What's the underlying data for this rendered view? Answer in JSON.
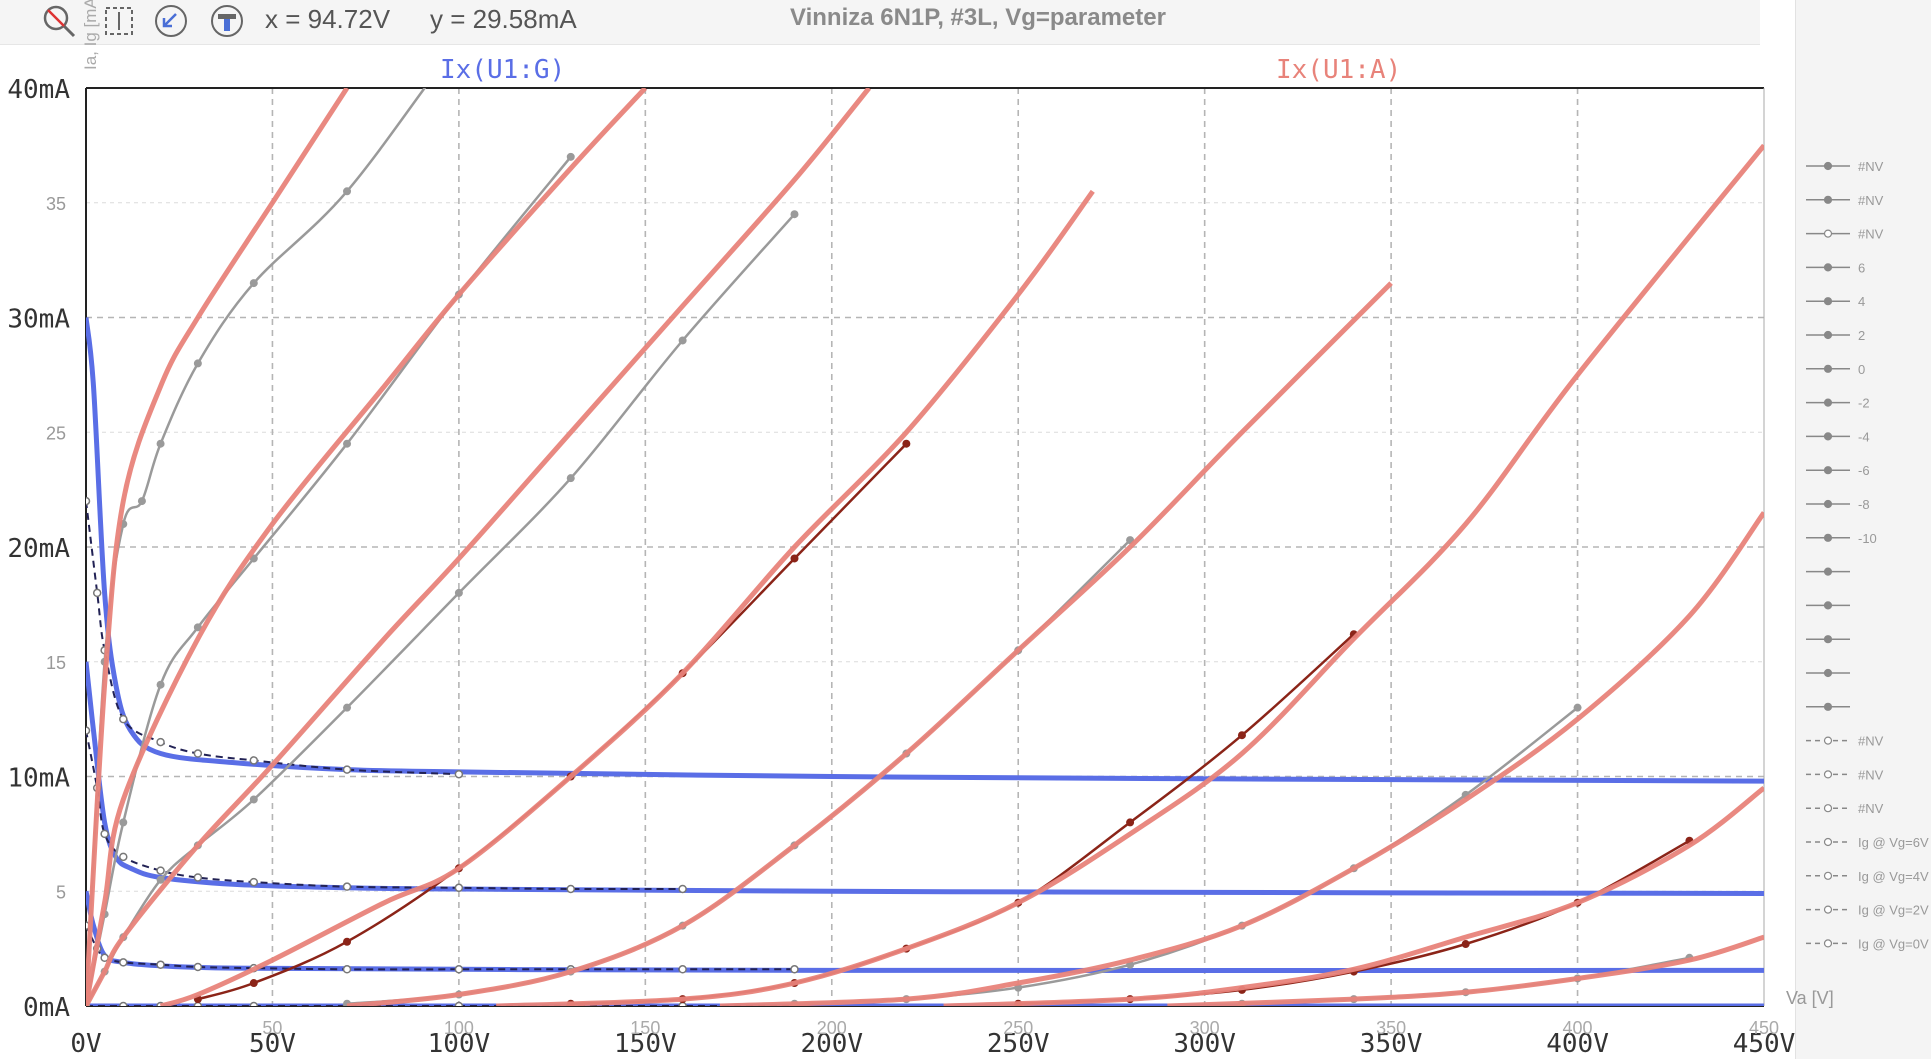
{
  "toolbar": {
    "icons": [
      "zoom-reset-icon",
      "zoom-box-icon",
      "zoom-out-icon",
      "cursor-tool-icon"
    ],
    "cursor_x": "x = 94.72V",
    "cursor_y": "y = 29.58mA",
    "title": "Vinniza 6N1P, #3L, Vg=parameter"
  },
  "chart_data": {
    "type": "line",
    "title": "Vinniza 6N1P, #3L, Vg=parameter",
    "xlabel": "Va [V]",
    "ylabel": "Ia, Ig [mA]",
    "xlim": [
      0,
      450
    ],
    "ylim": [
      0,
      40
    ],
    "grid": true,
    "x_ticks_major": [
      "0V",
      "50V",
      "100V",
      "150V",
      "200V",
      "250V",
      "300V",
      "350V",
      "400V",
      "450V"
    ],
    "x_ticks_minor": [
      "50",
      "100",
      "150",
      "200",
      "250",
      "300",
      "350",
      "400",
      "450"
    ],
    "y_ticks_major": [
      "0mA",
      "10mA",
      "20mA",
      "30mA",
      "40mA"
    ],
    "y_ticks_minor": [
      "5",
      "15",
      "25",
      "35"
    ],
    "trace_labels": [
      {
        "text": "Ix(U1:G)",
        "color": "#5a6ee6"
      },
      {
        "text": "Ix(U1:A)",
        "color": "#e8837a"
      }
    ],
    "colors": {
      "model_anode": "#e8837a",
      "model_grid": "#5a6ee6",
      "measured_anode": "#9a9a9a",
      "measured_grid": "#777777",
      "measured_dark": "#8b2418"
    },
    "series_model_anode": [
      {
        "x": [
          0,
          5,
          10,
          20,
          30,
          50,
          70
        ],
        "y": [
          0,
          14,
          22,
          27,
          30,
          35,
          40
        ]
      },
      {
        "x": [
          0,
          5,
          10,
          30,
          50,
          80,
          100,
          130,
          150
        ],
        "y": [
          0,
          4.5,
          9,
          16,
          21,
          27,
          31,
          36.5,
          40
        ]
      },
      {
        "x": [
          0,
          5,
          10,
          30,
          50,
          80,
          100,
          130,
          160,
          190,
          210
        ],
        "y": [
          0,
          1.5,
          3,
          7,
          10.5,
          16,
          19.5,
          25,
          30.5,
          36,
          40
        ]
      },
      {
        "x": [
          20,
          30,
          50,
          80,
          100,
          130,
          160,
          190,
          220,
          250,
          270
        ],
        "y": [
          0,
          0.5,
          2,
          4.5,
          6,
          10,
          14.5,
          20,
          25,
          31,
          35.5
        ]
      },
      {
        "x": [
          70,
          100,
          130,
          160,
          190,
          220,
          250,
          280,
          310,
          350
        ],
        "y": [
          0,
          0.5,
          1.5,
          3.5,
          7,
          11,
          15.5,
          20,
          25,
          31.5
        ]
      },
      {
        "x": [
          110,
          160,
          190,
          220,
          250,
          280,
          310,
          340,
          370,
          400,
          450
        ],
        "y": [
          0,
          0.3,
          1,
          2.5,
          4.5,
          7.5,
          11,
          16,
          21,
          27.5,
          37.5
        ]
      },
      {
        "x": [
          170,
          220,
          250,
          280,
          310,
          340,
          370,
          400,
          430,
          450
        ],
        "y": [
          0,
          0.3,
          1,
          2,
          3.5,
          6,
          9,
          12.5,
          17,
          21.5
        ]
      },
      {
        "x": [
          230,
          280,
          310,
          340,
          370,
          400,
          430,
          450
        ],
        "y": [
          0,
          0.3,
          0.8,
          1.6,
          3,
          4.5,
          7,
          9.5
        ]
      },
      {
        "x": [
          290,
          340,
          370,
          400,
          430,
          450
        ],
        "y": [
          0,
          0.3,
          0.6,
          1.2,
          2,
          3
        ]
      }
    ],
    "series_model_grid": [
      {
        "x": [
          0,
          2,
          5,
          8,
          12,
          20,
          40,
          70,
          100,
          200,
          300,
          450
        ],
        "y": [
          30,
          27,
          18,
          14,
          12,
          11,
          10.6,
          10.3,
          10.2,
          10,
          9.9,
          9.8
        ]
      },
      {
        "x": [
          0,
          2,
          5,
          8,
          12,
          20,
          40,
          70,
          100,
          200,
          300,
          450
        ],
        "y": [
          15,
          12,
          8,
          6.5,
          6,
          5.6,
          5.3,
          5.15,
          5.1,
          5,
          4.95,
          4.9
        ]
      },
      {
        "x": [
          0,
          2,
          5,
          10,
          20,
          40,
          100,
          200,
          450
        ],
        "y": [
          5,
          3.5,
          2.2,
          1.9,
          1.75,
          1.65,
          1.6,
          1.55,
          1.55
        ]
      },
      {
        "x": [
          0,
          450
        ],
        "y": [
          0,
          0
        ]
      }
    ],
    "series_measured_anode": [
      {
        "name": "6",
        "x": [
          0,
          5,
          10,
          15,
          20,
          30,
          45,
          70,
          100,
          130
        ],
        "y": [
          0,
          15,
          21,
          22,
          24.5,
          28,
          31.5,
          35.5,
          42,
          48
        ]
      },
      {
        "name": "4",
        "x": [
          0,
          5,
          10,
          20,
          30,
          45,
          70,
          100,
          130
        ],
        "y": [
          0,
          4,
          8,
          14,
          16.5,
          19.5,
          24.5,
          31,
          37
        ]
      },
      {
        "name": "2",
        "x": [
          0,
          5,
          10,
          20,
          30,
          45,
          70,
          100,
          130,
          160,
          190
        ],
        "y": [
          0,
          1.5,
          3,
          5.5,
          7,
          9,
          13,
          18,
          23,
          29,
          34.5
        ]
      },
      {
        "name": "0",
        "x": [
          30,
          45,
          70,
          100,
          130,
          160,
          190,
          220
        ],
        "y": [
          0.3,
          1,
          2.8,
          6,
          10,
          14.5,
          19.5,
          24.5
        ]
      },
      {
        "name": "-2",
        "x": [
          70,
          100,
          130,
          160,
          190,
          220,
          250,
          280
        ],
        "y": [
          0.1,
          0.5,
          1.5,
          3.5,
          7,
          11,
          15.5,
          20.3
        ]
      },
      {
        "name": "-4",
        "x": [
          130,
          160,
          190,
          220,
          250,
          280,
          310,
          340
        ],
        "y": [
          0.1,
          0.3,
          1,
          2.5,
          4.5,
          8,
          11.8,
          16.2
        ]
      },
      {
        "name": "-6",
        "x": [
          190,
          220,
          250,
          280,
          310,
          340,
          370,
          400
        ],
        "y": [
          0.1,
          0.3,
          0.8,
          1.8,
          3.5,
          6,
          9.2,
          13
        ]
      },
      {
        "name": "-8",
        "x": [
          250,
          280,
          310,
          340,
          370,
          400,
          430
        ],
        "y": [
          0.1,
          0.3,
          0.7,
          1.5,
          2.7,
          4.5,
          7.2
        ]
      },
      {
        "name": "-10",
        "x": [
          310,
          340,
          370,
          400,
          430
        ],
        "y": [
          0.1,
          0.3,
          0.6,
          1.2,
          2.1
        ]
      }
    ],
    "series_measured_grid": [
      {
        "name": "Ig @ Vg=6V",
        "x": [
          0,
          3,
          5,
          10,
          20,
          30,
          45,
          70,
          100
        ],
        "y": [
          22,
          18,
          15.5,
          12.5,
          11.5,
          11,
          10.7,
          10.3,
          10.1
        ]
      },
      {
        "name": "Ig @ Vg=4V",
        "x": [
          0,
          3,
          5,
          10,
          20,
          30,
          45,
          70,
          100,
          130,
          160
        ],
        "y": [
          12,
          9.5,
          7.5,
          6.5,
          5.9,
          5.6,
          5.4,
          5.2,
          5.15,
          5.1,
          5.1
        ]
      },
      {
        "name": "Ig @ Vg=2V",
        "x": [
          0,
          3,
          5,
          10,
          20,
          30,
          45,
          70,
          100,
          130,
          160,
          190
        ],
        "y": [
          3.5,
          2.5,
          2.1,
          1.9,
          1.8,
          1.7,
          1.65,
          1.6,
          1.6,
          1.6,
          1.6,
          1.6
        ]
      },
      {
        "name": "Ig @ Vg=0V",
        "x": [
          0,
          10,
          20,
          30,
          45,
          70,
          100,
          130,
          160,
          190
        ],
        "y": [
          0,
          0,
          0,
          0,
          0,
          0,
          0,
          0,
          0,
          0
        ]
      }
    ],
    "legend": {
      "placement": "right",
      "items": [
        {
          "label": "#NV",
          "style": "solid-filled"
        },
        {
          "label": "#NV",
          "style": "solid-filled"
        },
        {
          "label": "#NV",
          "style": "solid-open"
        },
        {
          "label": "6",
          "style": "solid-filled"
        },
        {
          "label": "4",
          "style": "solid-filled"
        },
        {
          "label": "2",
          "style": "solid-filled"
        },
        {
          "label": "0",
          "style": "solid-filled"
        },
        {
          "label": "-2",
          "style": "solid-filled"
        },
        {
          "label": "-4",
          "style": "solid-filled"
        },
        {
          "label": "-6",
          "style": "solid-filled"
        },
        {
          "label": "-8",
          "style": "solid-filled"
        },
        {
          "label": "-10",
          "style": "solid-filled"
        },
        {
          "label": "",
          "style": "solid-filled"
        },
        {
          "label": "",
          "style": "solid-filled"
        },
        {
          "label": "",
          "style": "solid-filled"
        },
        {
          "label": "",
          "style": "solid-filled"
        },
        {
          "label": "",
          "style": "solid-filled"
        },
        {
          "label": "#NV",
          "style": "dashed-open"
        },
        {
          "label": "#NV",
          "style": "dashed-open"
        },
        {
          "label": "#NV",
          "style": "dashed-open"
        },
        {
          "label": "Ig @ Vg=6V",
          "style": "dashed-open"
        },
        {
          "label": "Ig @ Vg=4V",
          "style": "dashed-open"
        },
        {
          "label": "Ig @ Vg=2V",
          "style": "dashed-open"
        },
        {
          "label": "Ig @ Vg=0V",
          "style": "dashed-open"
        }
      ]
    }
  }
}
